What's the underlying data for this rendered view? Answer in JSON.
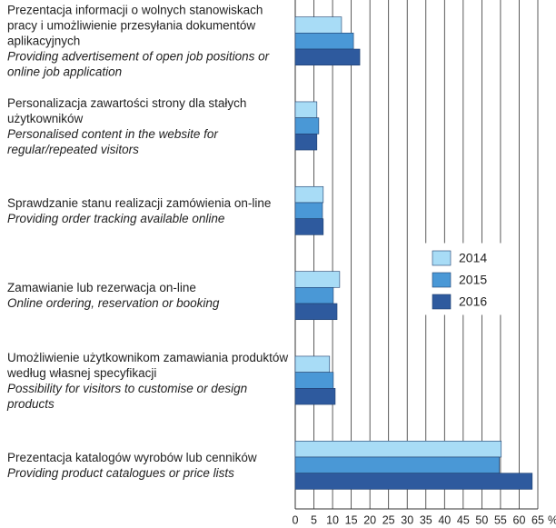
{
  "chart_data": {
    "type": "barh",
    "categories": [
      {
        "pl": "Prezentacja informacji o wolnych stanowiskach pracy i umożliwienie przesyłania dokumentów aplikacyjnych",
        "en": "Providing advertisement of open job positions or online job application"
      },
      {
        "pl": "Personalizacja zawartości strony dla stałych użytkowników",
        "en": "Personalised content in the website for regular/repeated visitors"
      },
      {
        "pl": "Sprawdzanie stanu realizacji zamówienia on-line",
        "en": "Providing order tracking available online"
      },
      {
        "pl": "Zamawianie lub rezerwacja on-line",
        "en": "Online ordering, reservation or booking"
      },
      {
        "pl": "Umożliwienie użytkownikom zamawiania produktów według własnej specyfikacji",
        "en": "Possibility for visitors to customise or design products"
      },
      {
        "pl": "Prezentacja katalogów wyrobów lub cenników",
        "en": "Providing product catalogues or price lists"
      }
    ],
    "series": [
      {
        "name": "2014",
        "color": "#a8dcf6",
        "values": [
          12.4,
          5.8,
          7.5,
          11.9,
          9.2,
          55.2
        ]
      },
      {
        "name": "2015",
        "color": "#4a98d6",
        "values": [
          15.6,
          6.3,
          7.3,
          10.2,
          10.2,
          54.7
        ]
      },
      {
        "name": "2016",
        "color": "#2e5a9e",
        "values": [
          17.3,
          5.8,
          7.5,
          11.2,
          10.7,
          63.5
        ]
      }
    ],
    "xlabel": "%",
    "xlim": [
      0,
      65
    ],
    "xticks": [
      0,
      5,
      10,
      15,
      20,
      25,
      30,
      35,
      40,
      45,
      50,
      55,
      60,
      65
    ],
    "grid": true
  }
}
